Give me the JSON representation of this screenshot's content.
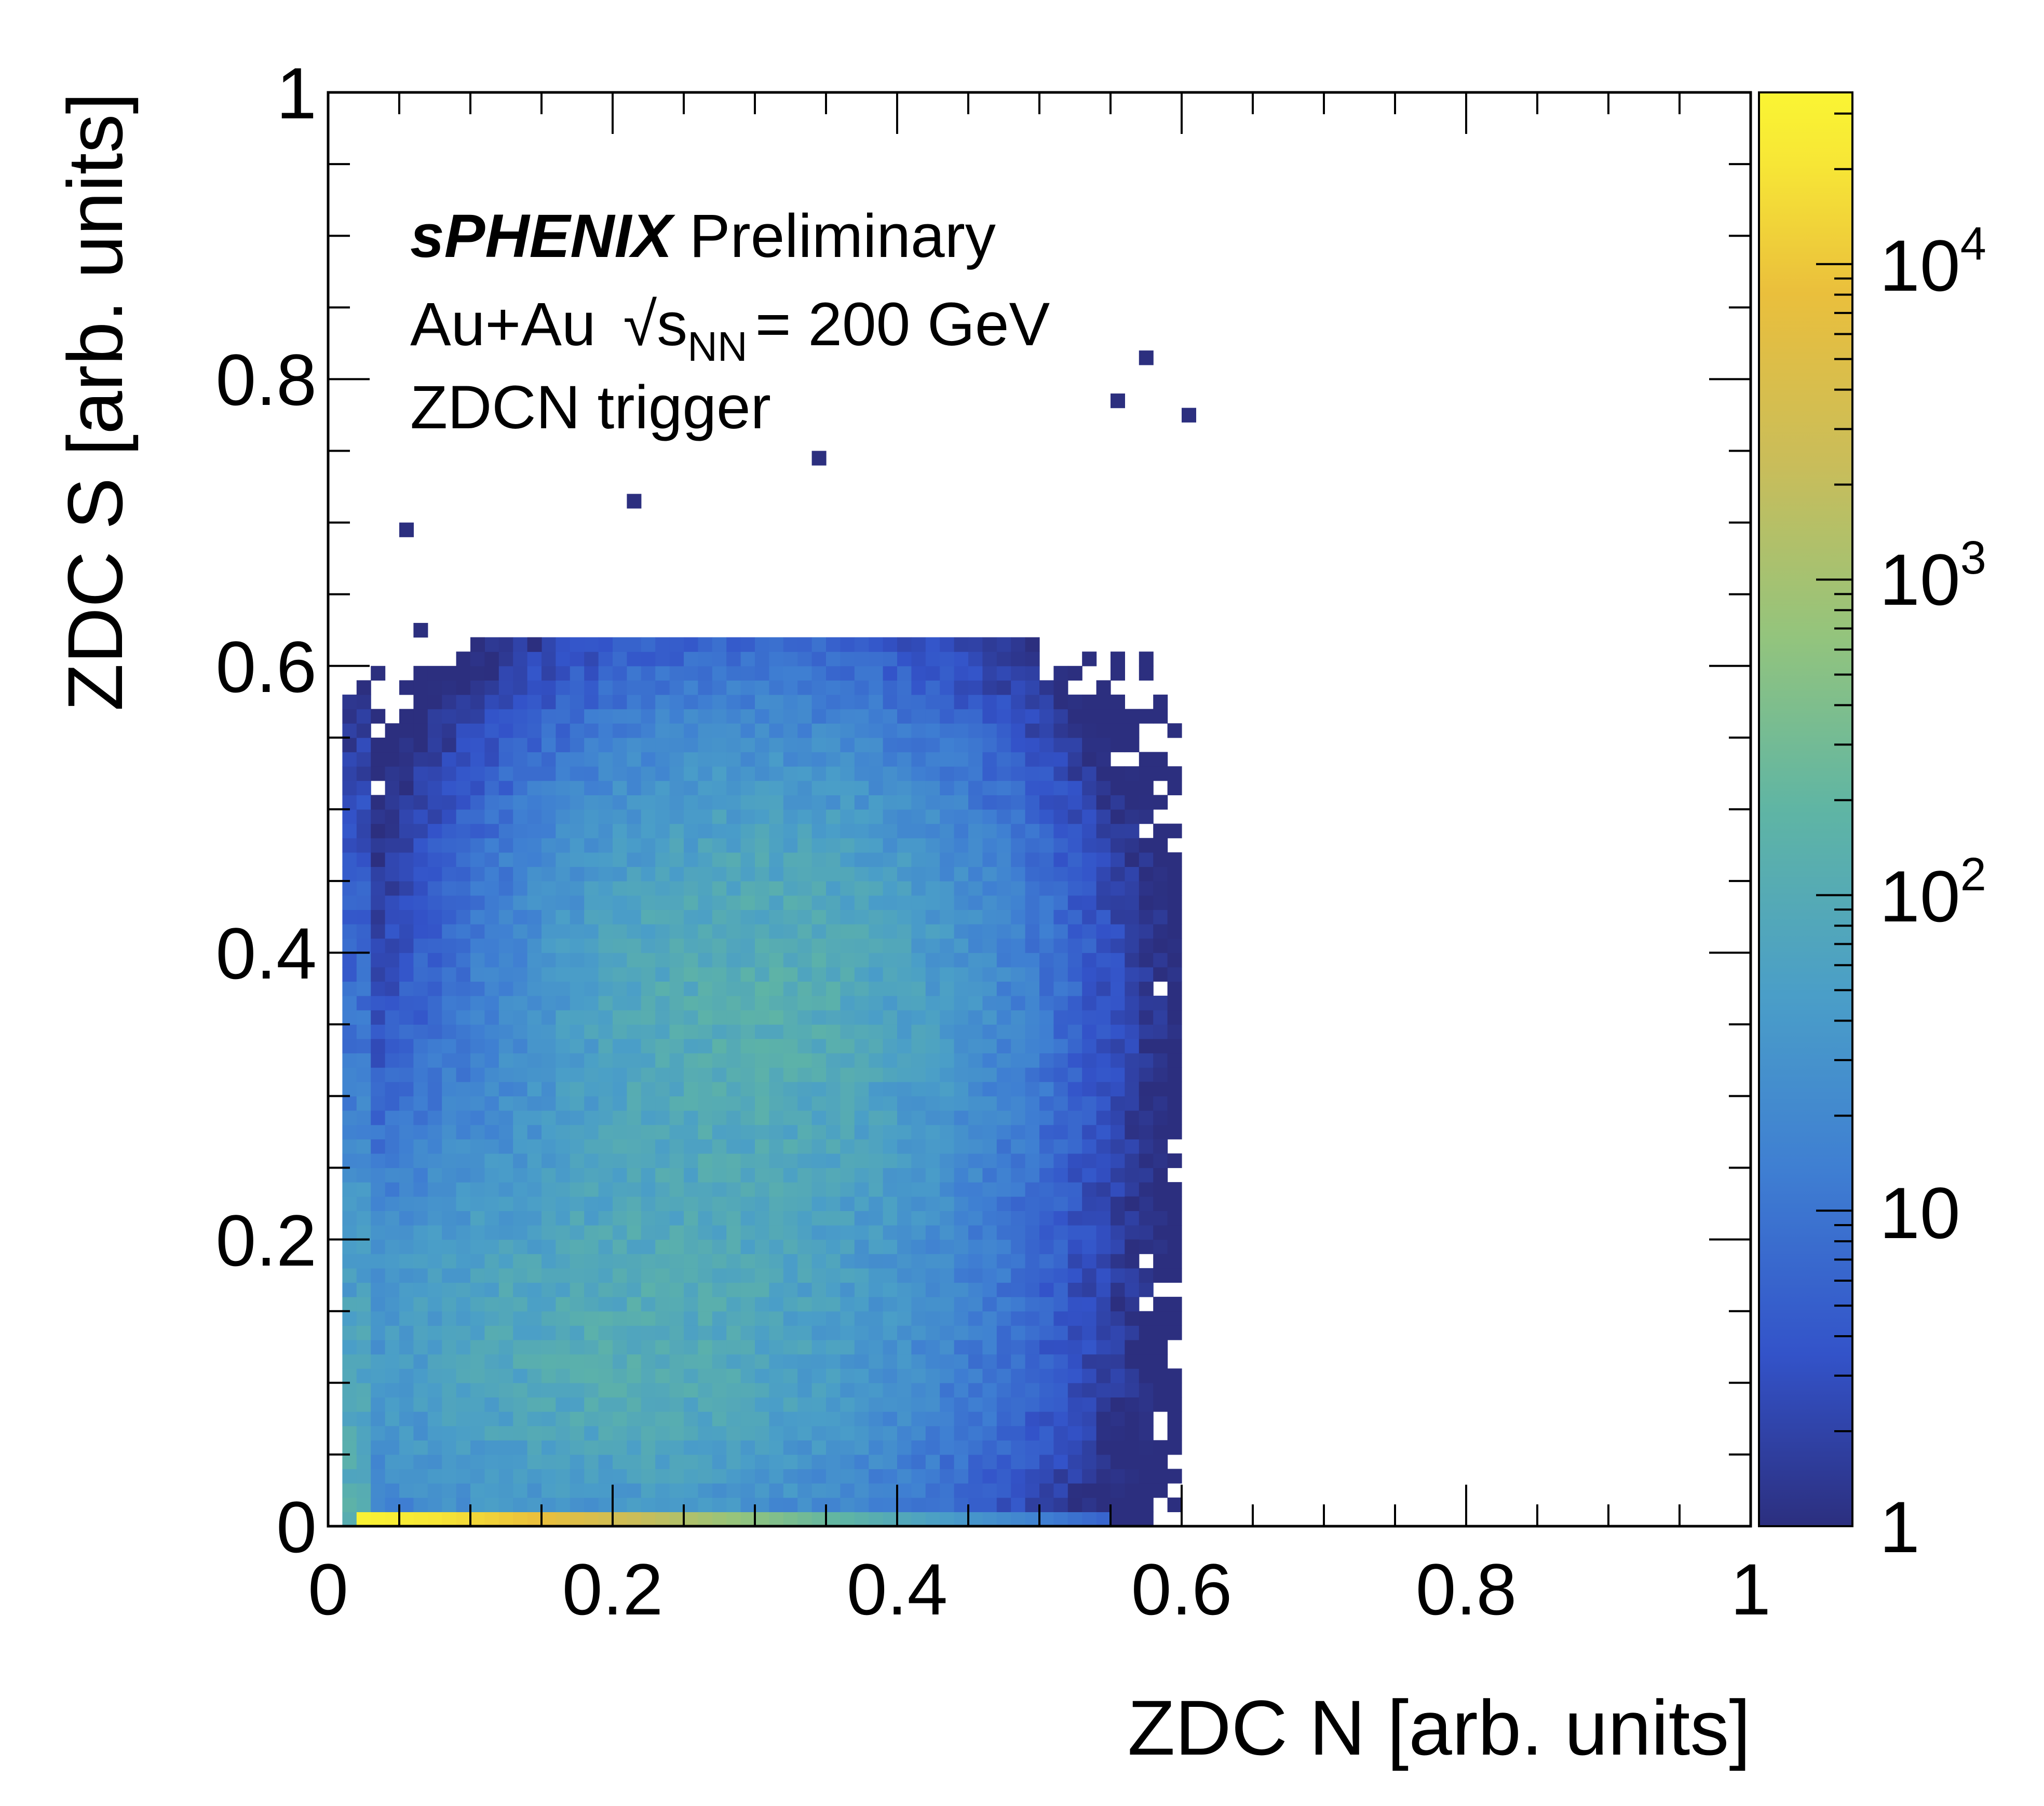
{
  "chart_data": {
    "type": "heatmap",
    "title": "",
    "xlabel": "ZDC N [arb. units]",
    "ylabel": "ZDC S [arb. units]",
    "xlim": [
      0,
      1
    ],
    "ylim": [
      0,
      1
    ],
    "x_ticks": [
      "0",
      "0.2",
      "0.4",
      "0.6",
      "0.8",
      "1"
    ],
    "y_ticks": [
      "0",
      "0.2",
      "0.4",
      "0.6",
      "0.8",
      "1"
    ],
    "z_scale": "log",
    "z_range": [
      1,
      35000
    ],
    "colorbar_ticks": [
      {
        "value": 1,
        "label": "1"
      },
      {
        "value": 10,
        "label": "10"
      },
      {
        "value": 100,
        "base": "10",
        "exp": "2"
      },
      {
        "value": 1000,
        "base": "10",
        "exp": "3"
      },
      {
        "value": 10000,
        "base": "10",
        "exp": "4"
      }
    ],
    "bins": 100,
    "annotations": {
      "experiment": "sPHENIX",
      "status": "Preliminary",
      "system": "Au+Au",
      "sqrt_symbol": "√",
      "energy_var": "s",
      "energy_sub": "NN",
      "energy_value": "= 200 GeV",
      "trigger": "ZDCN trigger"
    },
    "components": [
      {
        "kind": "baseline-band",
        "x_range": [
          0.015,
          0.55
        ],
        "y_range": [
          0,
          0.01
        ],
        "peak_count": 30000
      },
      {
        "kind": "low-x-column",
        "x_range": [
          0.015,
          0.03
        ],
        "y_range": [
          0,
          0.58
        ],
        "peak_count": 60
      },
      {
        "kind": "main-cluster",
        "center": [
          0.3,
          0.37
        ],
        "sigma": [
          0.1,
          0.11
        ],
        "peak_count": 70
      },
      {
        "kind": "low-s-cluster",
        "center": [
          0.2,
          0.12
        ],
        "sigma": [
          0.13,
          0.09
        ],
        "peak_count": 60
      }
    ],
    "outliers": [
      [
        0.58,
        0.81
      ],
      [
        0.55,
        0.78
      ],
      [
        0.6,
        0.77
      ],
      [
        0.34,
        0.74
      ],
      [
        0.21,
        0.71
      ],
      [
        0.05,
        0.69
      ],
      [
        0.06,
        0.62
      ],
      [
        0.1,
        0.61
      ],
      [
        0.14,
        0.61
      ],
      [
        0.58,
        0.3
      ],
      [
        0.57,
        0.22
      ],
      [
        0.57,
        0.19
      ],
      [
        0.55,
        0.15
      ]
    ],
    "colormap": [
      "#2c2f7f",
      "#3353c9",
      "#3f7fd2",
      "#4a9ec8",
      "#5fb5a4",
      "#93c47d",
      "#c9bd5a",
      "#eabf3c",
      "#f7e636",
      "#faf533"
    ]
  }
}
